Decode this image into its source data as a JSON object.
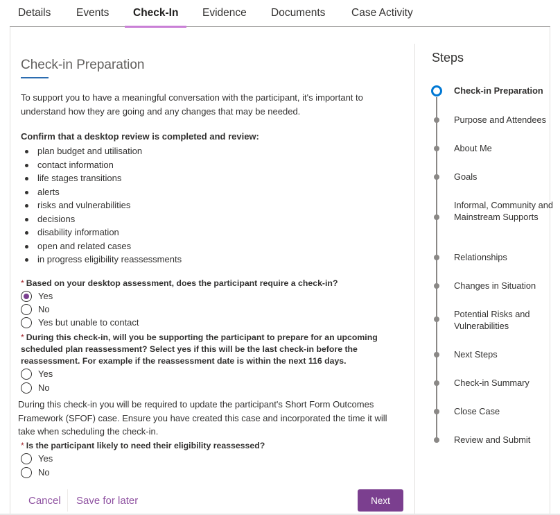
{
  "tabs": [
    "Details",
    "Events",
    "Check-In",
    "Evidence",
    "Documents",
    "Case Activity"
  ],
  "active_tab": "Check-In",
  "form": {
    "title": "Check-in Preparation",
    "intro": "To support you to have a meaningful conversation with the participant, it's important to understand how they are going and any changes that may be needed.",
    "confirm_heading": "Confirm that a desktop review is completed and review:",
    "bullets": [
      "plan budget and utilisation",
      "contact information",
      "life stages transitions",
      "alerts",
      "risks and vulnerabilities",
      "decisions",
      "disability information",
      "open and related cases",
      "in progress eligibility reassessments"
    ],
    "required_marker": "*",
    "q1": {
      "label": "Based on your desktop assessment, does the participant require a check-in?",
      "options": [
        "Yes",
        "No",
        "Yes but unable to contact"
      ],
      "selected": "Yes"
    },
    "q2": {
      "label": "During this check-in, will you be supporting the participant to prepare for an upcoming scheduled plan reassessment? Select yes if this will be the last check-in before the reassessment. For example if the reassessment date is within the next 116 days.",
      "options": [
        "Yes",
        "No"
      ],
      "selected": null
    },
    "note": "During this check-in you will be required to update the participant's Short Form Outcomes Framework (SFOF) case. Ensure you have created this case and incorporated the time it will take when scheduling the check-in.",
    "q3": {
      "label": "Is the participant likely to need their eligibility reassessed?",
      "options": [
        "Yes",
        "No"
      ],
      "selected": null
    }
  },
  "footer": {
    "cancel": "Cancel",
    "save": "Save for later",
    "next": "Next"
  },
  "steps": {
    "title": "Steps",
    "items": [
      "Check-in Preparation",
      "Purpose and Attendees",
      "About Me",
      "Goals",
      "Informal, Community and Mainstream Supports",
      "Relationships",
      "Changes in Situation",
      "Potential Risks and Vulnerabilities",
      "Next Steps",
      "Check-in Summary",
      "Close Case",
      "Review and Submit"
    ],
    "current": "Check-in Preparation"
  },
  "colors": {
    "accent": "#7b3f8f",
    "tab_underline": "#c97fd6",
    "step_current": "#0078d4",
    "required": "#a4262c"
  }
}
